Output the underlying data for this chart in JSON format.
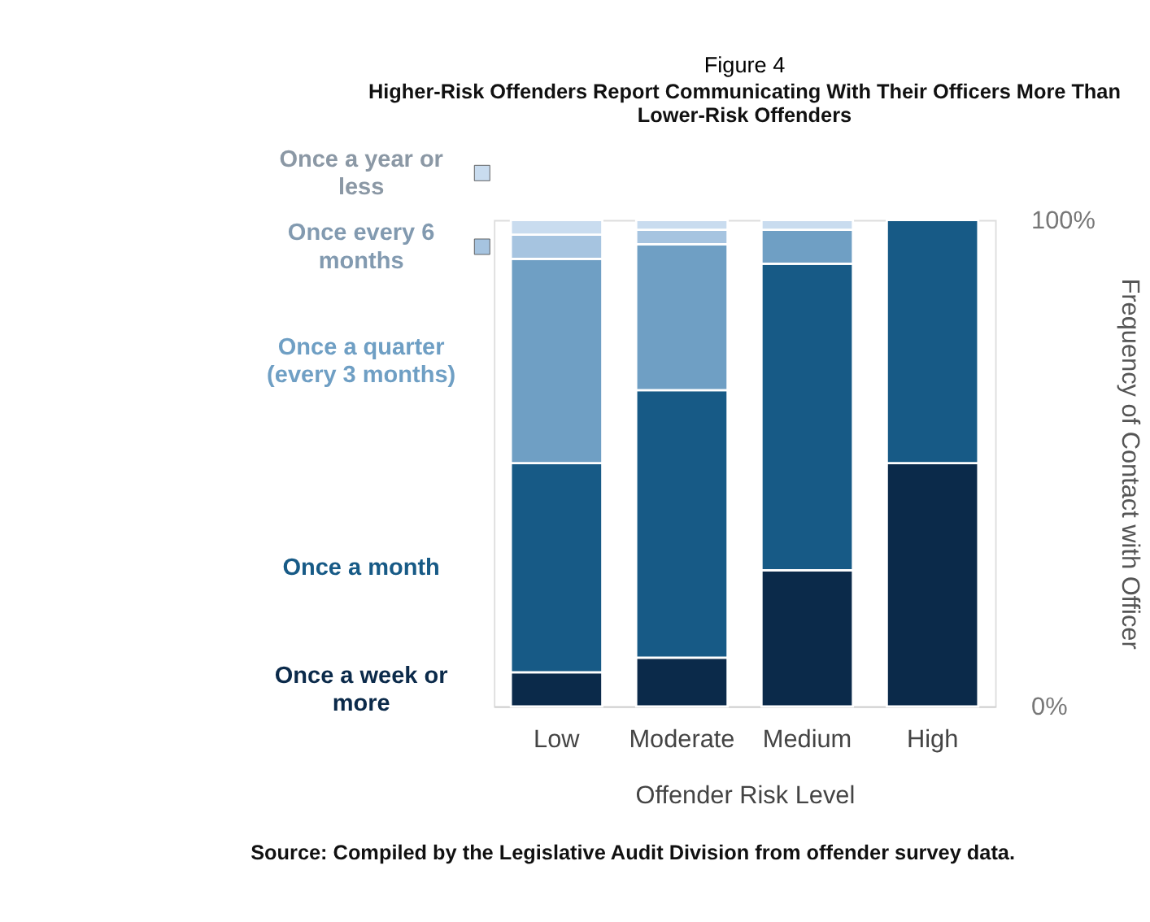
{
  "chart_data": {
    "type": "bar",
    "stacked": true,
    "title": "Figure 4",
    "subtitle": "Higher-Risk Offenders Report Communicating With Their Officers More Than Lower-Risk Offenders",
    "xlabel": "Offender Risk Level",
    "ylabel": "Frequency of Contact with Officer",
    "categories": [
      "Low",
      "Moderate",
      "Medium",
      "High"
    ],
    "series": [
      {
        "name": "Once a week or more",
        "color": "#0b2a4a",
        "values": [
          7,
          10,
          28,
          50
        ]
      },
      {
        "name": "Once a month",
        "color": "#175a86",
        "values": [
          43,
          55,
          63,
          50
        ]
      },
      {
        "name": "Once a quarter (every 3 months)",
        "color": "#6f9fc4",
        "values": [
          42,
          30,
          7,
          0
        ]
      },
      {
        "name": "Once every 6 months",
        "color": "#a6c4e0",
        "values": [
          5,
          3,
          0,
          0
        ]
      },
      {
        "name": "Once a year or less",
        "color": "#c9dcef",
        "values": [
          3,
          2,
          2,
          0
        ]
      }
    ],
    "ylim": [
      0,
      100
    ],
    "yticks": [
      {
        "value": 0,
        "label": "0%"
      },
      {
        "value": 100,
        "label": "100%"
      }
    ],
    "grid": false,
    "legend": "left",
    "annotations": [
      "Source: Compiled by the Legislative Audit Division from offender survey data."
    ]
  }
}
